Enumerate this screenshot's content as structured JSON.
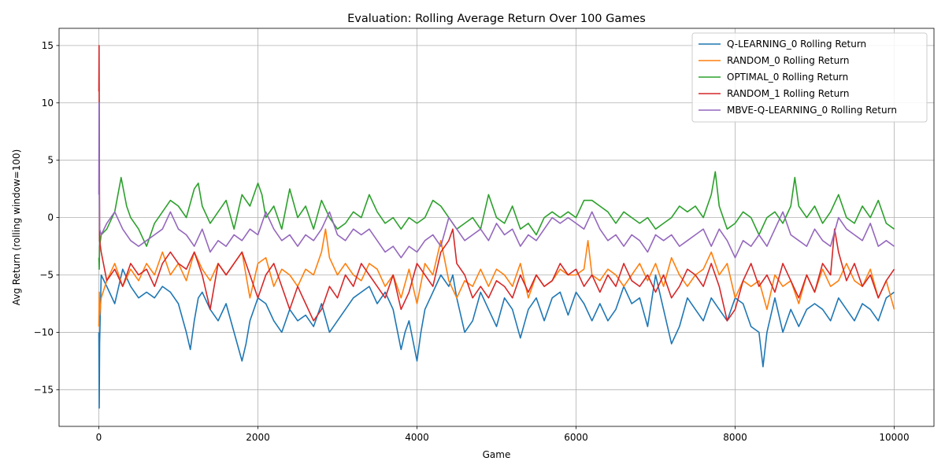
{
  "chart_data": {
    "type": "line",
    "title": "Evaluation: Rolling Average Return Over 100 Games",
    "xlabel": "Game",
    "ylabel": "Avg Return (rolling window=100)",
    "xlim": [
      -500,
      10500
    ],
    "ylim": [
      -18.2,
      16.5
    ],
    "xticks": [
      0,
      2000,
      4000,
      6000,
      8000,
      10000
    ],
    "yticks": [
      -15,
      -10,
      -5,
      0,
      5,
      10,
      15
    ],
    "grid": true,
    "legend_position": "top-right",
    "series": [
      {
        "name": "Q-LEARNING_0 Rolling Return",
        "color": "#1f77b4",
        "x": [
          0,
          5,
          10,
          30,
          100,
          200,
          300,
          400,
          500,
          600,
          700,
          800,
          900,
          1000,
          1100,
          1150,
          1200,
          1250,
          1300,
          1400,
          1500,
          1600,
          1700,
          1800,
          1850,
          1900,
          2000,
          2100,
          2200,
          2300,
          2400,
          2500,
          2600,
          2700,
          2800,
          2900,
          3000,
          3100,
          3200,
          3300,
          3400,
          3500,
          3600,
          3700,
          3800,
          3850,
          3900,
          4000,
          4050,
          4100,
          4200,
          4300,
          4400,
          4450,
          4500,
          4600,
          4700,
          4800,
          4900,
          5000,
          5100,
          5200,
          5300,
          5400,
          5500,
          5600,
          5700,
          5800,
          5900,
          6000,
          6100,
          6200,
          6300,
          6400,
          6500,
          6600,
          6700,
          6800,
          6900,
          7000,
          7100,
          7200,
          7300,
          7400,
          7500,
          7600,
          7700,
          7800,
          7900,
          8000,
          8100,
          8200,
          8300,
          8350,
          8400,
          8500,
          8600,
          8700,
          8800,
          8900,
          9000,
          9100,
          9200,
          9300,
          9400,
          9500,
          9600,
          9700,
          9800,
          9900,
          10000
        ],
        "values": [
          -10,
          -16.6,
          -11,
          -5,
          -6,
          -7.5,
          -4.5,
          -6,
          -7,
          -6.5,
          -7,
          -6,
          -6.5,
          -7.5,
          -10,
          -11.5,
          -9,
          -7,
          -6.5,
          -8,
          -9,
          -7.5,
          -10,
          -12.5,
          -11,
          -9,
          -7,
          -7.5,
          -9,
          -10,
          -8,
          -9,
          -8.5,
          -9.5,
          -7.5,
          -10,
          -9,
          -8,
          -7,
          -6.5,
          -6,
          -7.5,
          -6.5,
          -8,
          -11.5,
          -10,
          -9,
          -12.5,
          -10,
          -8,
          -6.5,
          -5,
          -6,
          -5,
          -7,
          -10,
          -9,
          -6.5,
          -8,
          -9.5,
          -7,
          -8,
          -10.5,
          -8,
          -7,
          -9,
          -7,
          -6.5,
          -8.5,
          -6.5,
          -7.5,
          -9,
          -7.5,
          -9,
          -8,
          -6,
          -7.5,
          -7,
          -9.5,
          -5,
          -8,
          -11,
          -9.5,
          -7,
          -8,
          -9,
          -7,
          -8,
          -9,
          -7,
          -7.5,
          -9.5,
          -10,
          -13,
          -10,
          -7,
          -10,
          -8,
          -9.5,
          -8,
          -7.5,
          -8,
          -9,
          -7,
          -8,
          -9,
          -7.5,
          -8,
          -9,
          -7,
          -6.5
        ]
      },
      {
        "name": "RANDOM_0 Rolling Return",
        "color": "#ff7f0e",
        "x": [
          0,
          5,
          10,
          30,
          100,
          200,
          300,
          400,
          500,
          600,
          700,
          800,
          900,
          1000,
          1100,
          1200,
          1300,
          1400,
          1500,
          1600,
          1700,
          1800,
          1900,
          2000,
          2100,
          2200,
          2300,
          2400,
          2500,
          2600,
          2700,
          2800,
          2850,
          2900,
          3000,
          3100,
          3200,
          3300,
          3400,
          3500,
          3600,
          3700,
          3800,
          3900,
          4000,
          4100,
          4200,
          4300,
          4400,
          4500,
          4600,
          4700,
          4800,
          4900,
          5000,
          5100,
          5200,
          5300,
          5400,
          5500,
          5600,
          5700,
          5800,
          5900,
          6000,
          6100,
          6150,
          6200,
          6300,
          6400,
          6500,
          6600,
          6700,
          6800,
          6900,
          7000,
          7100,
          7200,
          7300,
          7400,
          7500,
          7600,
          7700,
          7800,
          7900,
          8000,
          8100,
          8200,
          8300,
          8400,
          8500,
          8600,
          8700,
          8800,
          8900,
          9000,
          9100,
          9200,
          9300,
          9400,
          9500,
          9600,
          9700,
          9800,
          9900,
          10000
        ],
        "values": [
          -9.5,
          -6.5,
          -8.5,
          -7,
          -5.5,
          -4,
          -6,
          -4.5,
          -5.5,
          -4,
          -5,
          -3,
          -5,
          -4,
          -5.5,
          -3,
          -4.5,
          -5.5,
          -4,
          -5,
          -4,
          -3,
          -7,
          -4,
          -3.5,
          -6,
          -4.5,
          -5,
          -6,
          -4.5,
          -5,
          -3,
          -1,
          -3.5,
          -5,
          -4,
          -5,
          -5.5,
          -4,
          -4.5,
          -6,
          -5,
          -7,
          -4.5,
          -7.5,
          -4,
          -5,
          -2,
          -5.5,
          -7,
          -5.5,
          -6,
          -4.5,
          -6,
          -4.5,
          -5,
          -6,
          -4,
          -7,
          -5,
          -6,
          -5.5,
          -4.5,
          -5,
          -5,
          -4.5,
          -2,
          -5,
          -5.5,
          -4.5,
          -5,
          -6,
          -5,
          -4,
          -5.5,
          -4,
          -6,
          -3.5,
          -5,
          -6,
          -5,
          -4.5,
          -3,
          -5,
          -4,
          -7,
          -5.5,
          -6,
          -5.5,
          -8,
          -5,
          -6,
          -5.5,
          -7.5,
          -5,
          -6.5,
          -4.5,
          -6,
          -5.5,
          -4,
          -5.5,
          -6,
          -4.5,
          -7,
          -5.5,
          -8
        ]
      },
      {
        "name": "OPTIMAL_0 Rolling Return",
        "color": "#2ca02c",
        "x": [
          0,
          5,
          10,
          30,
          100,
          200,
          280,
          350,
          400,
          500,
          600,
          700,
          800,
          900,
          1000,
          1100,
          1200,
          1250,
          1300,
          1400,
          1500,
          1600,
          1700,
          1800,
          1900,
          2000,
          2050,
          2100,
          2200,
          2300,
          2400,
          2500,
          2600,
          2700,
          2800,
          2900,
          3000,
          3100,
          3200,
          3300,
          3400,
          3500,
          3600,
          3700,
          3800,
          3900,
          4000,
          4100,
          4200,
          4300,
          4400,
          4500,
          4600,
          4700,
          4800,
          4900,
          5000,
          5100,
          5200,
          5300,
          5400,
          5500,
          5600,
          5700,
          5800,
          5900,
          6000,
          6100,
          6200,
          6300,
          6400,
          6500,
          6600,
          6700,
          6800,
          6900,
          7000,
          7100,
          7200,
          7300,
          7400,
          7500,
          7600,
          7700,
          7750,
          7800,
          7900,
          8000,
          8100,
          8200,
          8300,
          8400,
          8500,
          8600,
          8700,
          8750,
          8800,
          8900,
          9000,
          9100,
          9200,
          9300,
          9400,
          9500,
          9600,
          9700,
          9800,
          9900,
          10000
        ],
        "values": [
          -3.5,
          -4.5,
          -2.5,
          -1.5,
          -1,
          0.5,
          3.5,
          1,
          0,
          -1,
          -2.5,
          -0.5,
          0.5,
          1.5,
          1,
          0,
          2.5,
          3,
          1,
          -0.5,
          0.5,
          1.5,
          -1,
          2,
          1,
          3,
          2,
          0,
          1,
          -1,
          2.5,
          0,
          1,
          -1,
          1.5,
          0,
          -1,
          -0.5,
          0.5,
          0,
          2,
          0.5,
          -0.5,
          0,
          -1,
          0,
          -0.5,
          0,
          1.5,
          1,
          0,
          -1,
          -0.5,
          0,
          -1,
          2,
          0,
          -0.5,
          1,
          -1,
          -0.5,
          -1.5,
          0,
          0.5,
          0,
          0.5,
          0,
          1.5,
          1.5,
          1,
          0.5,
          -0.5,
          0.5,
          0,
          -0.5,
          0,
          -1,
          -0.5,
          0,
          1,
          0.5,
          1,
          0,
          2,
          4,
          1,
          -1,
          -0.5,
          0.5,
          0,
          -1.5,
          0,
          0.5,
          -0.5,
          1,
          3.5,
          1,
          0,
          1,
          -0.5,
          0.5,
          2,
          0,
          -0.5,
          1,
          0,
          1.5,
          -0.5,
          -1
        ]
      },
      {
        "name": "RANDOM_1 Rolling Return",
        "color": "#d62728",
        "x": [
          0,
          3,
          6,
          10,
          30,
          100,
          200,
          300,
          400,
          500,
          600,
          700,
          800,
          900,
          1000,
          1100,
          1200,
          1300,
          1400,
          1500,
          1600,
          1700,
          1800,
          1900,
          2000,
          2100,
          2200,
          2300,
          2400,
          2500,
          2600,
          2700,
          2800,
          2900,
          3000,
          3100,
          3200,
          3300,
          3400,
          3500,
          3600,
          3700,
          3800,
          3900,
          4000,
          4100,
          4200,
          4300,
          4400,
          4450,
          4500,
          4600,
          4700,
          4800,
          4900,
          5000,
          5100,
          5200,
          5300,
          5400,
          5500,
          5600,
          5700,
          5800,
          5900,
          6000,
          6100,
          6200,
          6300,
          6400,
          6500,
          6600,
          6700,
          6800,
          6900,
          7000,
          7100,
          7200,
          7300,
          7400,
          7500,
          7600,
          7700,
          7800,
          7900,
          8000,
          8100,
          8200,
          8300,
          8400,
          8500,
          8600,
          8700,
          8800,
          8900,
          9000,
          9100,
          9200,
          9250,
          9300,
          9400,
          9500,
          9600,
          9700,
          9800,
          9900,
          10000
        ],
        "values": [
          11,
          15,
          8,
          -2,
          -3,
          -5.5,
          -4.5,
          -6,
          -4,
          -5,
          -4.5,
          -6,
          -4,
          -3,
          -4,
          -4.5,
          -3,
          -5,
          -8,
          -4,
          -5,
          -4,
          -3,
          -5,
          -7,
          -5,
          -4,
          -6,
          -8,
          -6,
          -7.5,
          -9,
          -8,
          -6,
          -7,
          -5,
          -6,
          -4,
          -5,
          -6,
          -7,
          -5,
          -8,
          -6.5,
          -4,
          -5,
          -6,
          -3,
          -2,
          -1,
          -4,
          -5,
          -7,
          -6,
          -7,
          -5.5,
          -6,
          -7,
          -5,
          -6.5,
          -5,
          -6,
          -5.5,
          -4,
          -5,
          -4.5,
          -6,
          -5,
          -6.5,
          -5,
          -6,
          -4,
          -5.5,
          -6,
          -5,
          -6.5,
          -5,
          -7,
          -6,
          -4.5,
          -5,
          -6,
          -4,
          -6,
          -9,
          -8,
          -5.5,
          -4,
          -6,
          -5,
          -6.5,
          -4,
          -5.5,
          -7,
          -5,
          -6.5,
          -4,
          -5,
          -1,
          -3,
          -5.5,
          -4,
          -6,
          -5,
          -7,
          -5.5,
          -4.5
        ]
      },
      {
        "name": "MBVE-Q-LEARNING_0 Rolling Return",
        "color": "#9467bd",
        "x": [
          0,
          3,
          6,
          10,
          30,
          100,
          200,
          300,
          400,
          500,
          600,
          700,
          800,
          900,
          1000,
          1100,
          1200,
          1300,
          1400,
          1500,
          1600,
          1700,
          1800,
          1900,
          2000,
          2100,
          2200,
          2300,
          2400,
          2500,
          2600,
          2700,
          2800,
          2900,
          3000,
          3100,
          3200,
          3300,
          3400,
          3500,
          3600,
          3700,
          3800,
          3900,
          4000,
          4100,
          4200,
          4300,
          4400,
          4500,
          4600,
          4700,
          4800,
          4900,
          5000,
          5100,
          5200,
          5300,
          5400,
          5500,
          5600,
          5700,
          5800,
          5900,
          6000,
          6100,
          6200,
          6300,
          6400,
          6500,
          6600,
          6700,
          6800,
          6900,
          7000,
          7100,
          7200,
          7300,
          7400,
          7500,
          7600,
          7700,
          7800,
          7900,
          8000,
          8100,
          8200,
          8300,
          8400,
          8500,
          8600,
          8700,
          8800,
          8900,
          9000,
          9100,
          9200,
          9300,
          9400,
          9500,
          9600,
          9700,
          9800,
          9900,
          10000
        ],
        "values": [
          2,
          10,
          3,
          -1,
          -1.5,
          -0.5,
          0.5,
          -1,
          -2,
          -2.5,
          -2,
          -1.5,
          -1,
          0.5,
          -1,
          -1.5,
          -2.5,
          -1,
          -3,
          -2,
          -2.5,
          -1.5,
          -2,
          -1,
          -1.5,
          0.5,
          -1,
          -2,
          -1.5,
          -2.5,
          -1.5,
          -2,
          -1,
          0.5,
          -1.5,
          -2,
          -1,
          -1.5,
          -1,
          -2,
          -3,
          -2.5,
          -3.5,
          -2.5,
          -3,
          -2,
          -1.5,
          -2.5,
          0,
          -1,
          -2,
          -1.5,
          -1,
          -2,
          -0.5,
          -1.5,
          -1,
          -2.5,
          -1.5,
          -2,
          -1,
          0,
          -0.5,
          0,
          -0.5,
          -1,
          0.5,
          -1,
          -2,
          -1.5,
          -2.5,
          -1.5,
          -2,
          -3,
          -1.5,
          -2,
          -1.5,
          -2.5,
          -2,
          -1.5,
          -1,
          -2.5,
          -1,
          -2,
          -3.5,
          -2,
          -2.5,
          -1.5,
          -2.5,
          -1,
          0.5,
          -1.5,
          -2,
          -2.5,
          -1,
          -2,
          -2.5,
          0,
          -1,
          -1.5,
          -2,
          -0.5,
          -2.5,
          -2,
          -2.5
        ]
      }
    ]
  }
}
